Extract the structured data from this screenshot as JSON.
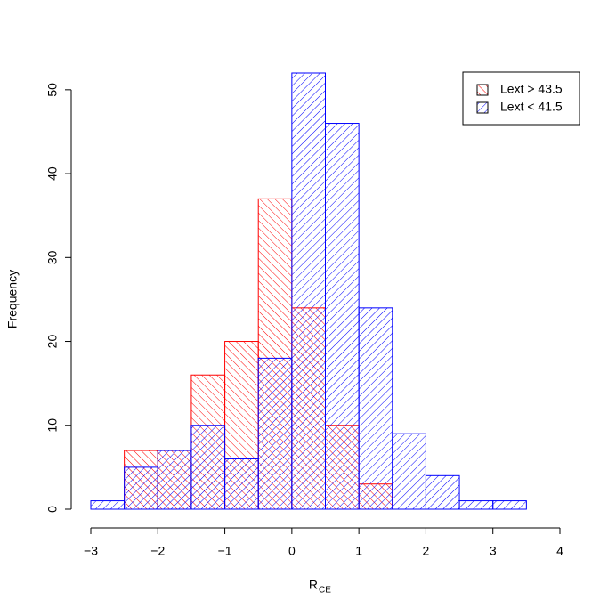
{
  "chart_data": {
    "type": "histogram",
    "xlabel": "R",
    "xlabel_sub": "CE",
    "ylabel": "Frequency",
    "series": [
      {
        "name": "Lext > 43.5",
        "color": "#ff0000",
        "hatch_angle": -45,
        "bins": [
          -2.5,
          -2,
          -1.5,
          -1,
          -0.5,
          0,
          0.5,
          1,
          1.5
        ],
        "values": [
          7,
          7,
          16,
          20,
          37,
          24,
          10,
          3
        ]
      },
      {
        "name": "Lext < 41.5",
        "color": "#0000ff",
        "hatch_angle": 45,
        "bins": [
          -3,
          -2.5,
          -2,
          -1.5,
          -1,
          -0.5,
          0,
          0.5,
          1,
          1.5,
          2,
          2.5,
          3,
          3.5,
          4
        ],
        "values": [
          1,
          5,
          7,
          10,
          6,
          18,
          52,
          46,
          24,
          9,
          4,
          1,
          1,
          0
        ]
      }
    ],
    "xlim": [
      -3,
      4
    ],
    "xticks": [
      {
        "value": -3,
        "label": "−3"
      },
      {
        "value": -2,
        "label": "−2"
      },
      {
        "value": -1,
        "label": "−1"
      },
      0,
      1,
      2,
      3,
      4
    ],
    "ylim": [
      0,
      52
    ],
    "yticks": [
      0,
      10,
      20,
      30,
      40,
      50
    ],
    "legend": "top-right"
  }
}
